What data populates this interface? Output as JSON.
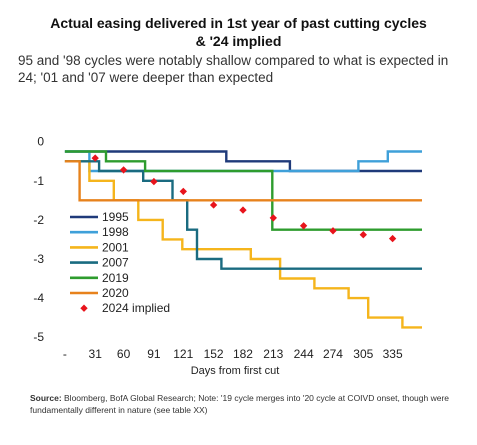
{
  "header": {
    "title_line1": "Actual easing delivered in 1st year of past cutting cycles",
    "title_line2": "& '24 implied",
    "subtitle": "95 and '98 cycles were notably shallow compared to what is expected in 24; '01 and '07 were deeper than expected"
  },
  "footer": {
    "source_label": "Source:",
    "source_text": " Bloomberg, BofA Global Research; Note: '19 cycle merges into '20 cycle at COIVD onset, though were fundamentally different in nature (see table XX)"
  },
  "chart_data": {
    "type": "line",
    "xlabel": "Days from first cut",
    "x_tick_labels": [
      "-",
      "31",
      "60",
      "91",
      "121",
      "152",
      "182",
      "213",
      "244",
      "274",
      "305",
      "335"
    ],
    "x_ticks": [
      0,
      31,
      60,
      91,
      121,
      152,
      182,
      213,
      244,
      274,
      305,
      335
    ],
    "y_ticks": [
      0,
      -1,
      -2,
      -3,
      -4,
      -5
    ],
    "y_tick_labels": [
      "0",
      "-1",
      "-2",
      "-3",
      "-4",
      "-5"
    ],
    "xlim": [
      -5,
      365
    ],
    "ylim": [
      -5.15,
      0.3
    ],
    "legend_position": "left",
    "series": [
      {
        "name": "1995",
        "color": "#1f3a7a",
        "style": "step",
        "points": [
          [
            0,
            -0.25
          ],
          [
            165,
            -0.25
          ],
          [
            165,
            -0.5
          ],
          [
            230,
            -0.5
          ],
          [
            230,
            -0.75
          ],
          [
            365,
            -0.75
          ]
        ]
      },
      {
        "name": "1998",
        "color": "#3fa0d9",
        "style": "step",
        "points": [
          [
            0,
            -0.25
          ],
          [
            25,
            -0.25
          ],
          [
            25,
            -0.75
          ],
          [
            300,
            -0.75
          ],
          [
            300,
            -0.5
          ],
          [
            330,
            -0.5
          ],
          [
            330,
            -0.25
          ],
          [
            365,
            -0.25
          ]
        ]
      },
      {
        "name": "2001",
        "color": "#f5b51c",
        "style": "step",
        "points": [
          [
            0,
            -0.5
          ],
          [
            25,
            -0.5
          ],
          [
            25,
            -1.0
          ],
          [
            50,
            -1.0
          ],
          [
            50,
            -1.5
          ],
          [
            75,
            -1.5
          ],
          [
            75,
            -2.0
          ],
          [
            100,
            -2.0
          ],
          [
            100,
            -2.5
          ],
          [
            120,
            -2.5
          ],
          [
            120,
            -2.75
          ],
          [
            190,
            -2.75
          ],
          [
            190,
            -3.0
          ],
          [
            220,
            -3.0
          ],
          [
            220,
            -3.5
          ],
          [
            255,
            -3.5
          ],
          [
            255,
            -3.75
          ],
          [
            290,
            -3.75
          ],
          [
            290,
            -4.0
          ],
          [
            310,
            -4.0
          ],
          [
            310,
            -4.5
          ],
          [
            345,
            -4.5
          ],
          [
            345,
            -4.75
          ],
          [
            365,
            -4.75
          ]
        ]
      },
      {
        "name": "2007",
        "color": "#1a6b80",
        "style": "step",
        "points": [
          [
            0,
            -0.5
          ],
          [
            35,
            -0.5
          ],
          [
            35,
            -0.75
          ],
          [
            80,
            -0.75
          ],
          [
            80,
            -1.0
          ],
          [
            110,
            -1.0
          ],
          [
            110,
            -1.5
          ],
          [
            125,
            -1.5
          ],
          [
            125,
            -2.25
          ],
          [
            135,
            -2.25
          ],
          [
            135,
            -3.0
          ],
          [
            160,
            -3.0
          ],
          [
            160,
            -3.25
          ],
          [
            365,
            -3.25
          ]
        ]
      },
      {
        "name": "2019",
        "color": "#2e9c2e",
        "style": "step",
        "points": [
          [
            0,
            -0.25
          ],
          [
            42,
            -0.25
          ],
          [
            42,
            -0.5
          ],
          [
            82,
            -0.5
          ],
          [
            82,
            -0.75
          ],
          [
            212,
            -0.75
          ],
          [
            212,
            -2.25
          ],
          [
            365,
            -2.25
          ]
        ]
      },
      {
        "name": "2020",
        "color": "#e7821c",
        "style": "step",
        "points": [
          [
            0,
            -0.5
          ],
          [
            15,
            -0.5
          ],
          [
            15,
            -1.5
          ],
          [
            365,
            -1.5
          ]
        ]
      },
      {
        "name": "2024 implied",
        "color": "#e8141c",
        "style": "markers",
        "points": [
          [
            31,
            -0.42
          ],
          [
            60,
            -0.72
          ],
          [
            91,
            -1.02
          ],
          [
            121,
            -1.27
          ],
          [
            152,
            -1.62
          ],
          [
            182,
            -1.75
          ],
          [
            213,
            -1.95
          ],
          [
            244,
            -2.15
          ],
          [
            274,
            -2.28
          ],
          [
            305,
            -2.38
          ],
          [
            335,
            -2.48
          ]
        ]
      }
    ]
  }
}
